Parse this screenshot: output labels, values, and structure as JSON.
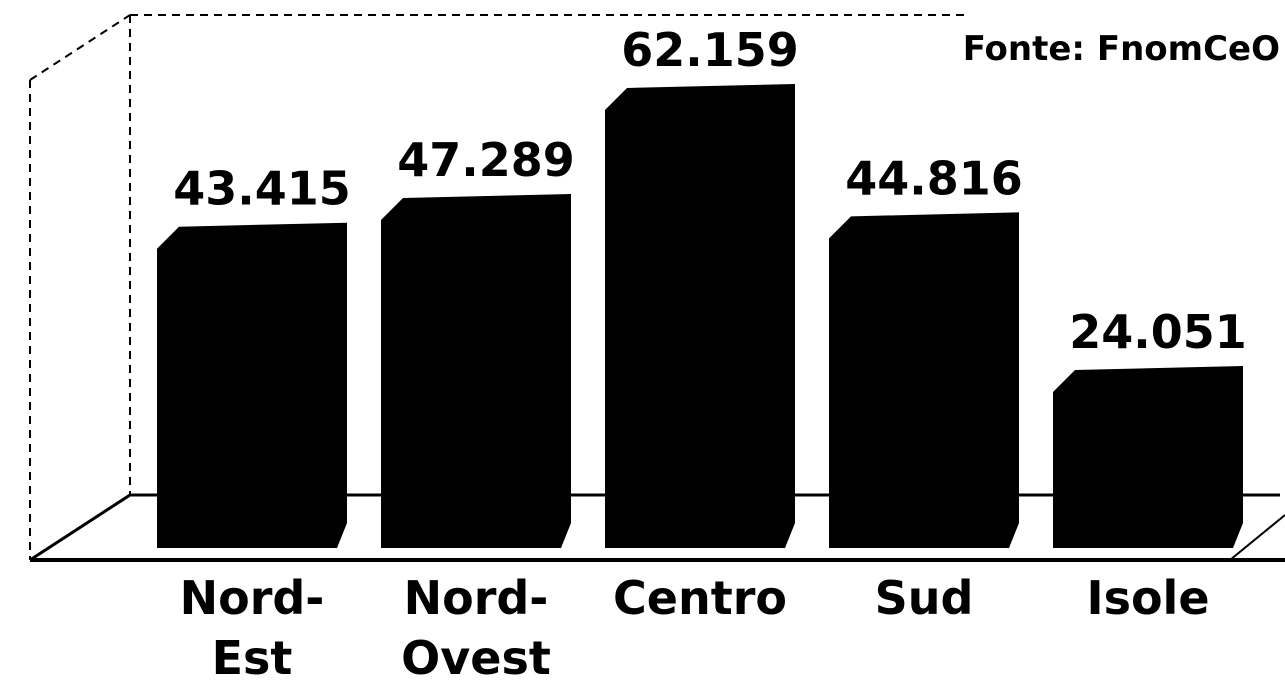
{
  "chart_data": {
    "type": "bar",
    "annotation": "Fonte: FnomCeO",
    "categories": [
      "Nord-Est",
      "Nord-Ovest",
      "Centro",
      "Sud",
      "Isole"
    ],
    "values": [
      43415,
      47289,
      62159,
      44816,
      24051
    ],
    "value_labels": [
      "43.415",
      "47.289",
      "62.159",
      "44.816",
      "24.051"
    ],
    "color": "#000000"
  }
}
